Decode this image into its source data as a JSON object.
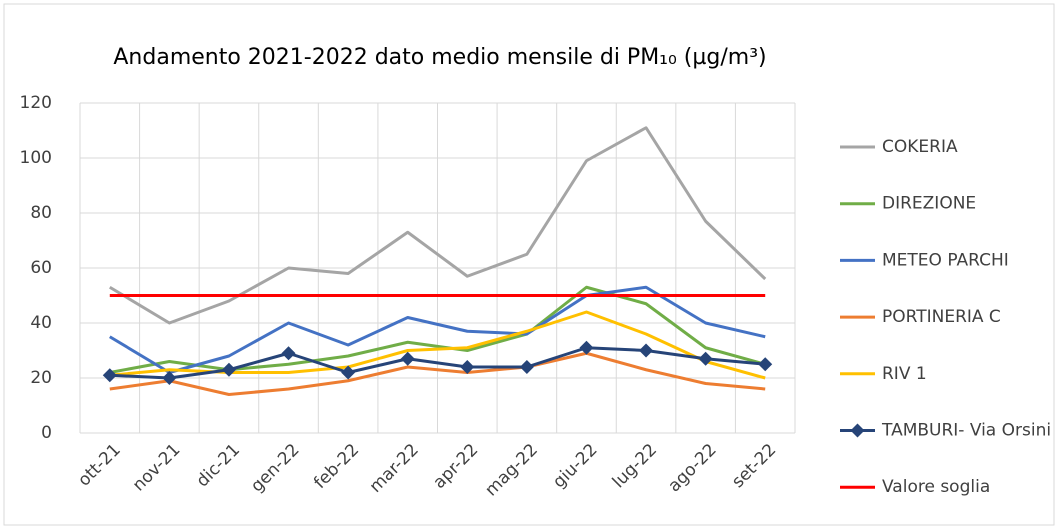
{
  "chart_data": {
    "type": "line",
    "title": "Andamento 2021-2022 dato medio mensile di PM₁₀  (µg/m³)",
    "categories": [
      "ott-21",
      "nov-21",
      "dic-21",
      "gen-22",
      "feb-22",
      "mar-22",
      "apr-22",
      "mag-22",
      "giu-22",
      "lug-22",
      "ago-22",
      "set-22"
    ],
    "series": [
      {
        "name": "COKERIA",
        "color": "#a5a5a5",
        "values": [
          53,
          40,
          48,
          60,
          58,
          73,
          57,
          65,
          99,
          111,
          77,
          56
        ]
      },
      {
        "name": "DIREZIONE",
        "color": "#70ad47",
        "values": [
          22,
          26,
          23,
          25,
          28,
          33,
          30,
          36,
          53,
          47,
          31,
          25
        ]
      },
      {
        "name": "METEO PARCHI",
        "color": "#4472c4",
        "values": [
          35,
          22,
          28,
          40,
          32,
          42,
          37,
          36,
          50,
          53,
          40,
          35
        ]
      },
      {
        "name": "PORTINERIA C",
        "color": "#ed7d31",
        "values": [
          16,
          19,
          14,
          16,
          19,
          24,
          22,
          24,
          29,
          23,
          18,
          16
        ]
      },
      {
        "name": "RIV 1",
        "color": "#ffc000",
        "values": [
          21,
          23,
          22,
          22,
          24,
          30,
          31,
          37,
          44,
          36,
          26,
          20
        ]
      },
      {
        "name": "TAMBURI- Via Orsini",
        "color": "#264478",
        "marker": "diamond",
        "values": [
          21,
          20,
          23,
          29,
          22,
          27,
          24,
          24,
          31,
          30,
          27,
          25
        ]
      },
      {
        "name": "Valore soglia",
        "color": "#ff0000",
        "values": [
          50,
          50,
          50,
          50,
          50,
          50,
          50,
          50,
          50,
          50,
          50,
          50
        ]
      }
    ],
    "ylim": [
      0,
      120
    ],
    "yticks": [
      0,
      20,
      40,
      60,
      80,
      100,
      120
    ],
    "grid": true,
    "legend": "right"
  }
}
